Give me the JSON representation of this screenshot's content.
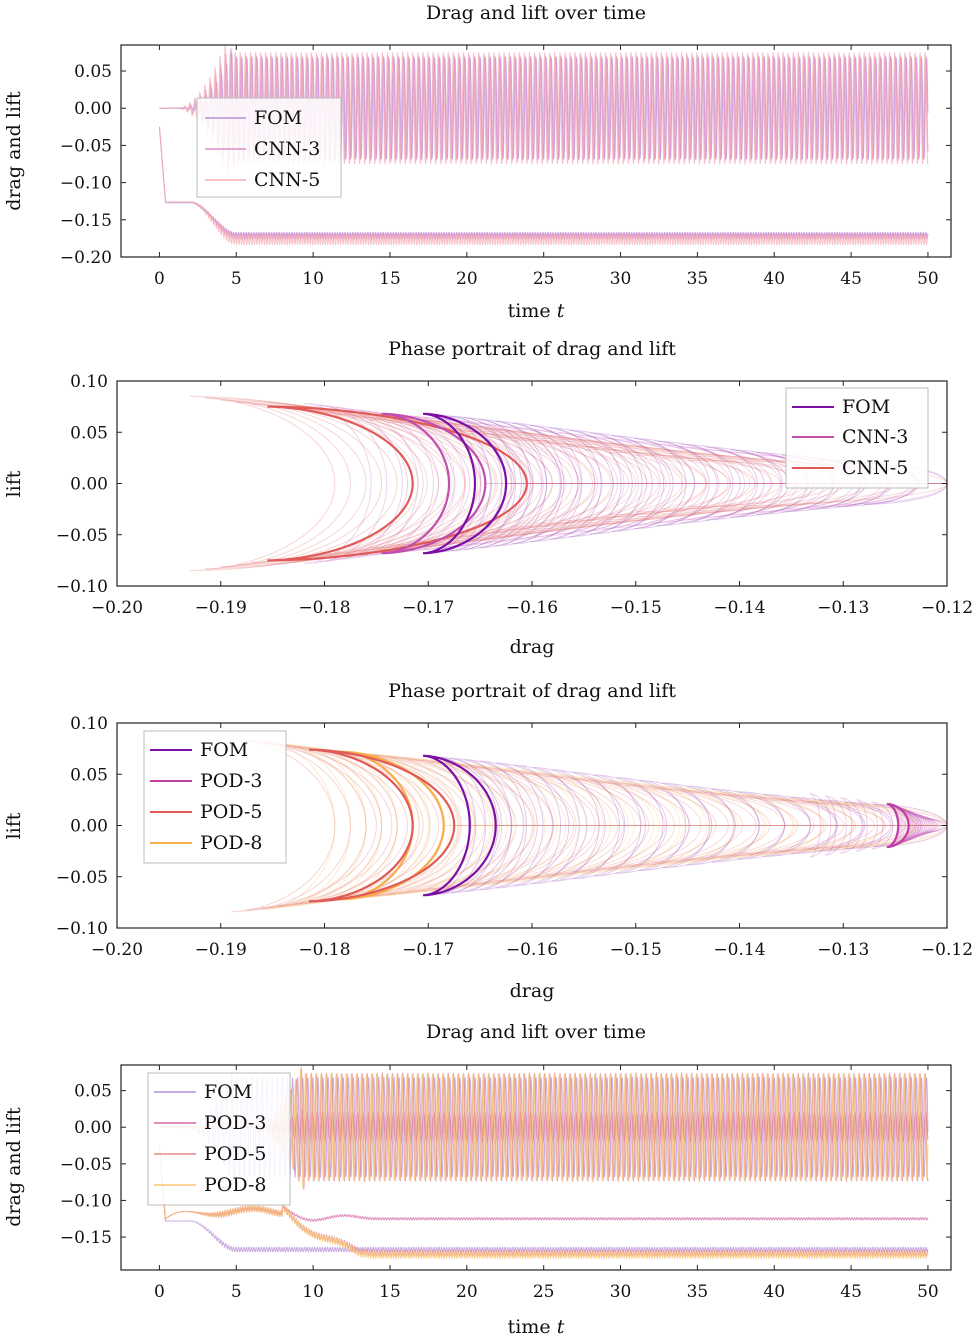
{
  "chart_data": [
    {
      "type": "line",
      "title": "Drag and lift over time",
      "xlabel": "time",
      "xlabel_var": "t",
      "ylabel": "drag and lift",
      "xlim": [
        -2.5,
        51.5
      ],
      "ylim": [
        -0.2,
        0.085
      ],
      "xticks": [
        0,
        5,
        10,
        15,
        20,
        25,
        30,
        35,
        40,
        45,
        50
      ],
      "yticks": [
        -0.2,
        -0.15,
        -0.1,
        -0.05,
        0.0,
        0.05
      ],
      "ytick_labels": [
        "−0.20",
        "−0.15",
        "−0.10",
        "−0.05",
        "0.00",
        "0.05"
      ],
      "legend_position": "top-left",
      "series": [
        {
          "name": "FOM",
          "color": "#b58fd9",
          "lift_amplitude": 0.068,
          "lift_onset_t": 3.5,
          "drag_start": -0.025,
          "drag_plateau": -0.127,
          "drag_final": -0.17,
          "drag_osc": 0.003,
          "period": 0.33
        },
        {
          "name": "CNN-3",
          "color": "#e08cc6",
          "lift_amplitude": 0.07,
          "lift_onset_t": 3.2,
          "drag_start": -0.025,
          "drag_plateau": -0.126,
          "drag_final": -0.172,
          "drag_osc": 0.004,
          "period": 0.33
        },
        {
          "name": "CNN-5",
          "color": "#f4aeb4",
          "lift_amplitude": 0.075,
          "lift_onset_t": 3.0,
          "drag_start": -0.025,
          "drag_plateau": -0.126,
          "drag_final": -0.177,
          "drag_osc": 0.006,
          "period": 0.33
        }
      ]
    },
    {
      "type": "scatter",
      "title": "Phase portrait of drag and lift",
      "xlabel": "drag",
      "ylabel": "lift",
      "xlim": [
        -0.2,
        -0.12
      ],
      "ylim": [
        -0.1,
        0.1
      ],
      "xticks": [
        -0.2,
        -0.19,
        -0.18,
        -0.17,
        -0.16,
        -0.15,
        -0.14,
        -0.13,
        -0.12
      ],
      "xtick_labels": [
        "−0.20",
        "−0.19",
        "−0.18",
        "−0.17",
        "−0.16",
        "−0.15",
        "−0.14",
        "−0.13",
        "−0.12"
      ],
      "yticks": [
        -0.1,
        -0.05,
        0.0,
        0.05,
        0.1
      ],
      "ytick_labels": [
        "−0.10",
        "−0.05",
        "0.00",
        "0.05",
        "0.10"
      ],
      "legend_position": "top-right",
      "series": [
        {
          "name": "FOM",
          "color": "#7b0fa6",
          "loop": {
            "tip_x": -0.1705,
            "inner_x": -0.1655,
            "outer_x": -0.1625,
            "amp": 0.068
          }
        },
        {
          "name": "CNN-3",
          "color": "#c04fb0",
          "loop": {
            "tip_x": -0.1745,
            "inner_x": -0.168,
            "outer_x": -0.1645,
            "amp": 0.068
          }
        },
        {
          "name": "CNN-5",
          "color": "#e05a58",
          "loop": {
            "tip_x": -0.1855,
            "inner_x": -0.1715,
            "outer_x": -0.1605,
            "amp": 0.075
          }
        }
      ],
      "transient_start_x": -0.12
    },
    {
      "type": "scatter",
      "title": "Phase portrait of drag and lift",
      "xlabel": "drag",
      "ylabel": "lift",
      "xlim": [
        -0.2,
        -0.12
      ],
      "ylim": [
        -0.1,
        0.1
      ],
      "xticks": [
        -0.2,
        -0.19,
        -0.18,
        -0.17,
        -0.16,
        -0.15,
        -0.14,
        -0.13,
        -0.12
      ],
      "xtick_labels": [
        "−0.20",
        "−0.19",
        "−0.18",
        "−0.17",
        "−0.16",
        "−0.15",
        "−0.14",
        "−0.13",
        "−0.12"
      ],
      "yticks": [
        -0.1,
        -0.05,
        0.0,
        0.05,
        0.1
      ],
      "ytick_labels": [
        "−0.10",
        "−0.05",
        "0.00",
        "0.05",
        "0.10"
      ],
      "legend_position": "top-left",
      "series": [
        {
          "name": "FOM",
          "color": "#7b0fa6",
          "loop": {
            "tip_x": -0.1705,
            "inner_x": -0.166,
            "outer_x": -0.1635,
            "amp": 0.068
          }
        },
        {
          "name": "POD-3",
          "color": "#bf3fa8",
          "loop": {
            "tip_x": -0.1258,
            "inner_x": -0.1247,
            "outer_x": -0.1237,
            "amp": 0.021
          }
        },
        {
          "name": "POD-5",
          "color": "#e05a58",
          "loop": {
            "tip_x": -0.1815,
            "inner_x": -0.1715,
            "outer_x": -0.1675,
            "amp": 0.074
          }
        },
        {
          "name": "POD-8",
          "color": "#f8ad4c",
          "loop": {
            "tip_x": -0.1785,
            "inner_x": -0.1715,
            "outer_x": -0.1685,
            "amp": 0.072
          }
        }
      ],
      "transient_start_x": -0.12
    },
    {
      "type": "line",
      "title": "Drag and lift over time",
      "xlabel": "time",
      "xlabel_var": "t",
      "ylabel": "drag and lift",
      "xlim": [
        -2.5,
        51.5
      ],
      "ylim": [
        -0.195,
        0.085
      ],
      "xticks": [
        0,
        5,
        10,
        15,
        20,
        25,
        30,
        35,
        40,
        45,
        50
      ],
      "yticks": [
        -0.15,
        -0.1,
        -0.05,
        0.0,
        0.05
      ],
      "ytick_labels": [
        "−0.15",
        "−0.10",
        "−0.05",
        "0.00",
        "0.05"
      ],
      "legend_position": "top-left",
      "series": [
        {
          "name": "FOM",
          "color": "#b58fd9",
          "lift_amplitude": 0.068,
          "lift_onset_t": 3.5,
          "drag_start": -0.025,
          "drag_plateau": -0.128,
          "drag_final": -0.167,
          "drag_osc": 0.003,
          "period": 0.33
        },
        {
          "name": "POD-3",
          "color": "#d46aa8",
          "lift_amplitude": 0.021,
          "lift_onset_t": 8.0,
          "drag_start": -0.025,
          "drag_plateau": -0.115,
          "drag_final": -0.125,
          "drag_osc": 0.0015,
          "period": 0.33
        },
        {
          "name": "POD-5",
          "color": "#e48a86",
          "lift_amplitude": 0.074,
          "lift_onset_t": 8.0,
          "drag_start": -0.025,
          "drag_plateau": -0.115,
          "drag_final": -0.172,
          "drag_osc": 0.004,
          "period": 0.33
        },
        {
          "name": "POD-8",
          "color": "#fbc676",
          "lift_amplitude": 0.072,
          "lift_onset_t": 8.0,
          "drag_start": -0.025,
          "drag_plateau": -0.115,
          "drag_final": -0.175,
          "drag_osc": 0.004,
          "period": 0.33
        }
      ]
    }
  ]
}
